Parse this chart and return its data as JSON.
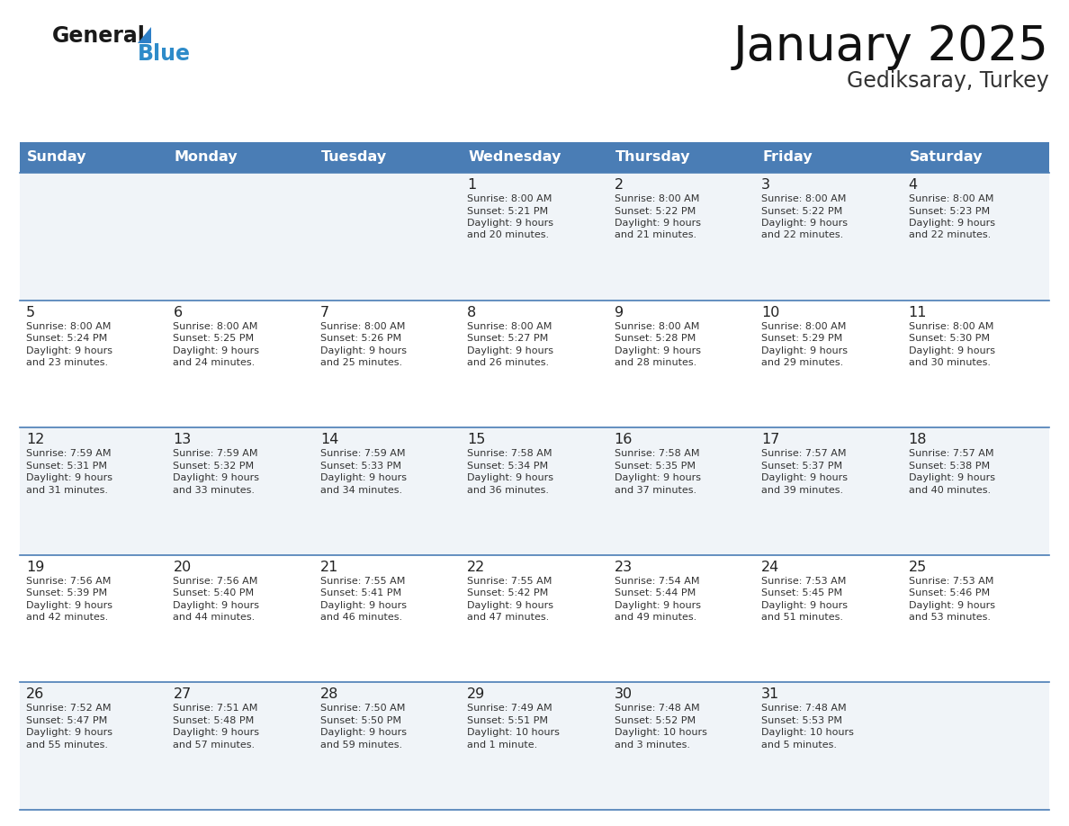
{
  "title": "January 2025",
  "subtitle": "Gediksaray, Turkey",
  "header_bg": "#4a7db5",
  "header_text_color": "#ffffff",
  "days_of_week": [
    "Sunday",
    "Monday",
    "Tuesday",
    "Wednesday",
    "Thursday",
    "Friday",
    "Saturday"
  ],
  "row_bg_even": "#f0f4f8",
  "row_bg_odd": "#ffffff",
  "cell_border_color": "#4a7db5",
  "day_number_color": "#222222",
  "cell_text_color": "#333333",
  "calendar": [
    [
      {
        "day": null,
        "sunrise": null,
        "sunset": null,
        "daylight_line1": null,
        "daylight_line2": null
      },
      {
        "day": null,
        "sunrise": null,
        "sunset": null,
        "daylight_line1": null,
        "daylight_line2": null
      },
      {
        "day": null,
        "sunrise": null,
        "sunset": null,
        "daylight_line1": null,
        "daylight_line2": null
      },
      {
        "day": 1,
        "sunrise": "8:00 AM",
        "sunset": "5:21 PM",
        "daylight_line1": "9 hours",
        "daylight_line2": "and 20 minutes."
      },
      {
        "day": 2,
        "sunrise": "8:00 AM",
        "sunset": "5:22 PM",
        "daylight_line1": "9 hours",
        "daylight_line2": "and 21 minutes."
      },
      {
        "day": 3,
        "sunrise": "8:00 AM",
        "sunset": "5:22 PM",
        "daylight_line1": "9 hours",
        "daylight_line2": "and 22 minutes."
      },
      {
        "day": 4,
        "sunrise": "8:00 AM",
        "sunset": "5:23 PM",
        "daylight_line1": "9 hours",
        "daylight_line2": "and 22 minutes."
      }
    ],
    [
      {
        "day": 5,
        "sunrise": "8:00 AM",
        "sunset": "5:24 PM",
        "daylight_line1": "9 hours",
        "daylight_line2": "and 23 minutes."
      },
      {
        "day": 6,
        "sunrise": "8:00 AM",
        "sunset": "5:25 PM",
        "daylight_line1": "9 hours",
        "daylight_line2": "and 24 minutes."
      },
      {
        "day": 7,
        "sunrise": "8:00 AM",
        "sunset": "5:26 PM",
        "daylight_line1": "9 hours",
        "daylight_line2": "and 25 minutes."
      },
      {
        "day": 8,
        "sunrise": "8:00 AM",
        "sunset": "5:27 PM",
        "daylight_line1": "9 hours",
        "daylight_line2": "and 26 minutes."
      },
      {
        "day": 9,
        "sunrise": "8:00 AM",
        "sunset": "5:28 PM",
        "daylight_line1": "9 hours",
        "daylight_line2": "and 28 minutes."
      },
      {
        "day": 10,
        "sunrise": "8:00 AM",
        "sunset": "5:29 PM",
        "daylight_line1": "9 hours",
        "daylight_line2": "and 29 minutes."
      },
      {
        "day": 11,
        "sunrise": "8:00 AM",
        "sunset": "5:30 PM",
        "daylight_line1": "9 hours",
        "daylight_line2": "and 30 minutes."
      }
    ],
    [
      {
        "day": 12,
        "sunrise": "7:59 AM",
        "sunset": "5:31 PM",
        "daylight_line1": "9 hours",
        "daylight_line2": "and 31 minutes."
      },
      {
        "day": 13,
        "sunrise": "7:59 AM",
        "sunset": "5:32 PM",
        "daylight_line1": "9 hours",
        "daylight_line2": "and 33 minutes."
      },
      {
        "day": 14,
        "sunrise": "7:59 AM",
        "sunset": "5:33 PM",
        "daylight_line1": "9 hours",
        "daylight_line2": "and 34 minutes."
      },
      {
        "day": 15,
        "sunrise": "7:58 AM",
        "sunset": "5:34 PM",
        "daylight_line1": "9 hours",
        "daylight_line2": "and 36 minutes."
      },
      {
        "day": 16,
        "sunrise": "7:58 AM",
        "sunset": "5:35 PM",
        "daylight_line1": "9 hours",
        "daylight_line2": "and 37 minutes."
      },
      {
        "day": 17,
        "sunrise": "7:57 AM",
        "sunset": "5:37 PM",
        "daylight_line1": "9 hours",
        "daylight_line2": "and 39 minutes."
      },
      {
        "day": 18,
        "sunrise": "7:57 AM",
        "sunset": "5:38 PM",
        "daylight_line1": "9 hours",
        "daylight_line2": "and 40 minutes."
      }
    ],
    [
      {
        "day": 19,
        "sunrise": "7:56 AM",
        "sunset": "5:39 PM",
        "daylight_line1": "9 hours",
        "daylight_line2": "and 42 minutes."
      },
      {
        "day": 20,
        "sunrise": "7:56 AM",
        "sunset": "5:40 PM",
        "daylight_line1": "9 hours",
        "daylight_line2": "and 44 minutes."
      },
      {
        "day": 21,
        "sunrise": "7:55 AM",
        "sunset": "5:41 PM",
        "daylight_line1": "9 hours",
        "daylight_line2": "and 46 minutes."
      },
      {
        "day": 22,
        "sunrise": "7:55 AM",
        "sunset": "5:42 PM",
        "daylight_line1": "9 hours",
        "daylight_line2": "and 47 minutes."
      },
      {
        "day": 23,
        "sunrise": "7:54 AM",
        "sunset": "5:44 PM",
        "daylight_line1": "9 hours",
        "daylight_line2": "and 49 minutes."
      },
      {
        "day": 24,
        "sunrise": "7:53 AM",
        "sunset": "5:45 PM",
        "daylight_line1": "9 hours",
        "daylight_line2": "and 51 minutes."
      },
      {
        "day": 25,
        "sunrise": "7:53 AM",
        "sunset": "5:46 PM",
        "daylight_line1": "9 hours",
        "daylight_line2": "and 53 minutes."
      }
    ],
    [
      {
        "day": 26,
        "sunrise": "7:52 AM",
        "sunset": "5:47 PM",
        "daylight_line1": "9 hours",
        "daylight_line2": "and 55 minutes."
      },
      {
        "day": 27,
        "sunrise": "7:51 AM",
        "sunset": "5:48 PM",
        "daylight_line1": "9 hours",
        "daylight_line2": "and 57 minutes."
      },
      {
        "day": 28,
        "sunrise": "7:50 AM",
        "sunset": "5:50 PM",
        "daylight_line1": "9 hours",
        "daylight_line2": "and 59 minutes."
      },
      {
        "day": 29,
        "sunrise": "7:49 AM",
        "sunset": "5:51 PM",
        "daylight_line1": "10 hours",
        "daylight_line2": "and 1 minute."
      },
      {
        "day": 30,
        "sunrise": "7:48 AM",
        "sunset": "5:52 PM",
        "daylight_line1": "10 hours",
        "daylight_line2": "and 3 minutes."
      },
      {
        "day": 31,
        "sunrise": "7:48 AM",
        "sunset": "5:53 PM",
        "daylight_line1": "10 hours",
        "daylight_line2": "and 5 minutes."
      },
      {
        "day": null,
        "sunrise": null,
        "sunset": null,
        "daylight_line1": null,
        "daylight_line2": null
      }
    ]
  ],
  "logo_general_color": "#1a1a1a",
  "logo_blue_color": "#2e8bc9",
  "logo_triangle_color": "#2e7fc7",
  "fig_width": 11.88,
  "fig_height": 9.18,
  "dpi": 100
}
